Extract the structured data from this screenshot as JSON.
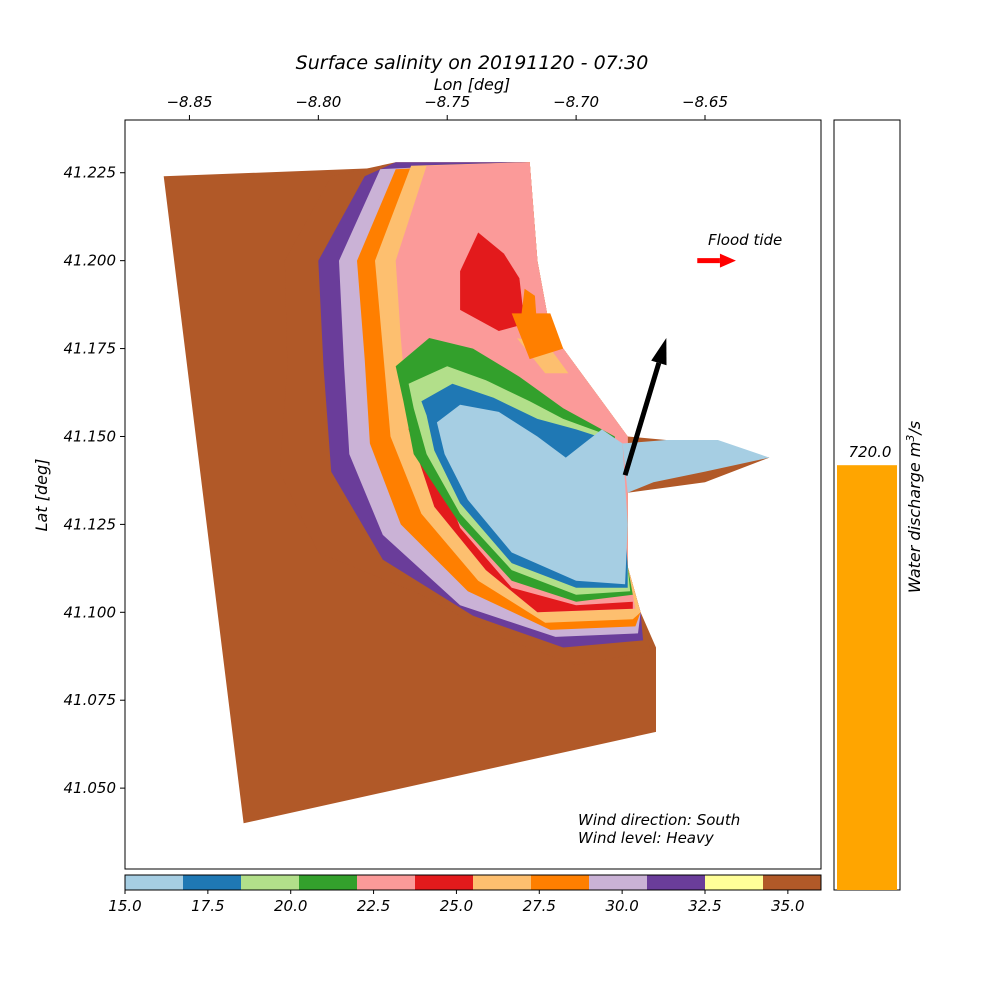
{
  "chart_data": {
    "type": "heatmap",
    "title": "Surface salinity on 20191120 - 07:30",
    "xlabel": "Lon [deg]",
    "ylabel": "Lat [deg]",
    "xlim": [
      -8.875,
      -8.605
    ],
    "ylim": [
      41.027,
      41.24
    ],
    "x_ticks": [
      {
        "value": -8.85,
        "label": "−8.85"
      },
      {
        "value": -8.8,
        "label": "−8.80"
      },
      {
        "value": -8.75,
        "label": "−8.75"
      },
      {
        "value": -8.7,
        "label": "−8.70"
      },
      {
        "value": -8.65,
        "label": "−8.65"
      }
    ],
    "y_ticks": [
      {
        "value": 41.05,
        "label": "41.050"
      },
      {
        "value": 41.075,
        "label": "41.075"
      },
      {
        "value": 41.1,
        "label": "41.100"
      },
      {
        "value": 41.125,
        "label": "41.125"
      },
      {
        "value": 41.15,
        "label": "41.150"
      },
      {
        "value": 41.175,
        "label": "41.175"
      },
      {
        "value": 41.2,
        "label": "41.200"
      },
      {
        "value": 41.225,
        "label": "41.225"
      }
    ],
    "colorbar": {
      "min": 15.0,
      "max": 36.0,
      "colors": [
        "#a6cee3",
        "#1f78b4",
        "#b2df8a",
        "#33a02c",
        "#fb9a99",
        "#e31a1c",
        "#fdbf6f",
        "#ff7f00",
        "#cab2d6",
        "#6a3d9a",
        "#ffff99",
        "#b15928"
      ],
      "tick_values": [
        15.0,
        17.5,
        20.0,
        22.5,
        25.0,
        27.5,
        30.0,
        32.5,
        35.0
      ],
      "tick_labels": [
        "15.0",
        "17.5",
        "20.0",
        "22.5",
        "25.0",
        "27.5",
        "30.0",
        "32.5",
        "35.0"
      ]
    },
    "domain_outline": [
      [
        -8.86,
        41.224
      ],
      [
        -8.718,
        41.228
      ],
      [
        -8.715,
        41.2
      ],
      [
        -8.71,
        41.18
      ],
      [
        -8.68,
        41.15
      ],
      [
        -8.665,
        41.149
      ],
      [
        -8.65,
        41.148
      ],
      [
        -8.625,
        41.144
      ],
      [
        -8.65,
        41.137
      ],
      [
        -8.68,
        41.134
      ],
      [
        -8.68,
        41.113
      ],
      [
        -8.675,
        41.1
      ],
      [
        -8.669,
        41.09
      ],
      [
        -8.669,
        41.066
      ],
      [
        -8.829,
        41.04
      ]
    ],
    "plume_bands": [
      {
        "salinity": 34.5,
        "points": [
          [
            -8.795,
            41.224
          ],
          [
            -8.77,
            41.228
          ],
          [
            -8.718,
            41.228
          ],
          [
            -8.715,
            41.2
          ],
          [
            -8.71,
            41.18
          ],
          [
            -8.69,
            41.16
          ],
          [
            -8.68,
            41.15
          ],
          [
            -8.68,
            41.134
          ],
          [
            -8.68,
            41.113
          ],
          [
            -8.675,
            41.1
          ],
          [
            -8.671,
            41.089
          ],
          [
            -8.7,
            41.085
          ],
          [
            -8.73,
            41.093
          ],
          [
            -8.76,
            41.105
          ],
          [
            -8.8,
            41.117
          ],
          [
            -8.815,
            41.14
          ],
          [
            -8.812,
            41.17
          ],
          [
            -8.813,
            41.2
          ]
        ]
      },
      {
        "salinity": 32.0,
        "points": [
          [
            -8.782,
            41.224
          ],
          [
            -8.77,
            41.228
          ],
          [
            -8.718,
            41.228
          ],
          [
            -8.715,
            41.2
          ],
          [
            -8.71,
            41.18
          ],
          [
            -8.69,
            41.16
          ],
          [
            -8.68,
            41.15
          ],
          [
            -8.68,
            41.134
          ],
          [
            -8.68,
            41.113
          ],
          [
            -8.675,
            41.1
          ],
          [
            -8.674,
            41.092
          ],
          [
            -8.705,
            41.09
          ],
          [
            -8.74,
            41.099
          ],
          [
            -8.775,
            41.115
          ],
          [
            -8.795,
            41.14
          ],
          [
            -8.798,
            41.17
          ],
          [
            -8.8,
            41.2
          ]
        ]
      },
      {
        "salinity": 30.5,
        "points": [
          [
            -8.776,
            41.226
          ],
          [
            -8.718,
            41.228
          ],
          [
            -8.715,
            41.2
          ],
          [
            -8.71,
            41.18
          ],
          [
            -8.69,
            41.16
          ],
          [
            -8.68,
            41.15
          ],
          [
            -8.68,
            41.113
          ],
          [
            -8.675,
            41.1
          ],
          [
            -8.676,
            41.094
          ],
          [
            -8.708,
            41.093
          ],
          [
            -8.745,
            41.102
          ],
          [
            -8.775,
            41.122
          ],
          [
            -8.788,
            41.145
          ],
          [
            -8.79,
            41.17
          ],
          [
            -8.792,
            41.2
          ]
        ]
      },
      {
        "salinity": 28.5,
        "points": [
          [
            -8.77,
            41.226
          ],
          [
            -8.718,
            41.228
          ],
          [
            -8.715,
            41.2
          ],
          [
            -8.71,
            41.18
          ],
          [
            -8.69,
            41.16
          ],
          [
            -8.68,
            41.15
          ],
          [
            -8.68,
            41.113
          ],
          [
            -8.675,
            41.1
          ],
          [
            -8.677,
            41.096
          ],
          [
            -8.71,
            41.095
          ],
          [
            -8.742,
            41.106
          ],
          [
            -8.768,
            41.125
          ],
          [
            -8.78,
            41.148
          ],
          [
            -8.782,
            41.172
          ],
          [
            -8.785,
            41.2
          ]
        ]
      },
      {
        "salinity": 26.5,
        "points": [
          [
            -8.764,
            41.227
          ],
          [
            -8.718,
            41.228
          ],
          [
            -8.715,
            41.2
          ],
          [
            -8.71,
            41.18
          ],
          [
            -8.69,
            41.16
          ],
          [
            -8.68,
            41.15
          ],
          [
            -8.68,
            41.113
          ],
          [
            -8.675,
            41.1
          ],
          [
            -8.678,
            41.098
          ],
          [
            -8.712,
            41.097
          ],
          [
            -8.738,
            41.109
          ],
          [
            -8.76,
            41.128
          ],
          [
            -8.772,
            41.15
          ],
          [
            -8.775,
            41.175
          ],
          [
            -8.778,
            41.2
          ]
        ]
      },
      {
        "salinity": 23.0,
        "points": [
          [
            -8.758,
            41.227
          ],
          [
            -8.718,
            41.228
          ],
          [
            -8.715,
            41.2
          ],
          [
            -8.71,
            41.18
          ],
          [
            -8.69,
            41.16
          ],
          [
            -8.68,
            41.15
          ],
          [
            -8.68,
            41.113
          ],
          [
            -8.677,
            41.101
          ],
          [
            -8.715,
            41.1
          ],
          [
            -8.735,
            41.112
          ],
          [
            -8.755,
            41.13
          ],
          [
            -8.765,
            41.152
          ],
          [
            -8.768,
            41.178
          ],
          [
            -8.77,
            41.2
          ]
        ]
      },
      {
        "salinity": 25.0,
        "points": [
          [
            -8.745,
            41.197
          ],
          [
            -8.738,
            41.208
          ],
          [
            -8.728,
            41.202
          ],
          [
            -8.722,
            41.195
          ],
          [
            -8.72,
            41.182
          ],
          [
            -8.73,
            41.18
          ],
          [
            -8.745,
            41.186
          ]
        ]
      },
      {
        "salinity": 25.0,
        "points": [
          [
            -8.745,
            41.124
          ],
          [
            -8.725,
            41.107
          ],
          [
            -8.7,
            41.102
          ],
          [
            -8.678,
            41.103
          ],
          [
            -8.678,
            41.101
          ],
          [
            -8.715,
            41.1
          ],
          [
            -8.735,
            41.112
          ],
          [
            -8.755,
            41.13
          ],
          [
            -8.765,
            41.152
          ],
          [
            -8.763,
            41.16
          ]
        ]
      },
      {
        "salinity": 28.0,
        "points": [
          [
            -8.722,
            41.18
          ],
          [
            -8.72,
            41.192
          ],
          [
            -8.716,
            41.19
          ],
          [
            -8.715,
            41.18
          ]
        ]
      },
      {
        "salinity": 27.0,
        "points": [
          [
            -8.723,
            41.178
          ],
          [
            -8.711,
            41.176
          ],
          [
            -8.703,
            41.168
          ],
          [
            -8.712,
            41.168
          ]
        ]
      },
      {
        "salinity": 28.0,
        "points": [
          [
            -8.725,
            41.185
          ],
          [
            -8.71,
            41.185
          ],
          [
            -8.705,
            41.175
          ],
          [
            -8.718,
            41.172
          ]
        ]
      },
      {
        "salinity": 21.0,
        "points": [
          [
            -8.77,
            41.17
          ],
          [
            -8.757,
            41.178
          ],
          [
            -8.74,
            41.175
          ],
          [
            -8.722,
            41.167
          ],
          [
            -8.705,
            41.158
          ],
          [
            -8.685,
            41.15
          ],
          [
            -8.68,
            41.113
          ],
          [
            -8.678,
            41.105
          ],
          [
            -8.7,
            41.103
          ],
          [
            -8.725,
            41.109
          ],
          [
            -8.745,
            41.125
          ],
          [
            -8.763,
            41.145
          ],
          [
            -8.767,
            41.16
          ]
        ]
      },
      {
        "salinity": 19.5,
        "points": [
          [
            -8.765,
            41.165
          ],
          [
            -8.75,
            41.17
          ],
          [
            -8.735,
            41.166
          ],
          [
            -8.718,
            41.16
          ],
          [
            -8.705,
            41.155
          ],
          [
            -8.69,
            41.151
          ],
          [
            -8.68,
            41.113
          ],
          [
            -8.679,
            41.106
          ],
          [
            -8.7,
            41.105
          ],
          [
            -8.725,
            41.112
          ],
          [
            -8.745,
            41.128
          ],
          [
            -8.758,
            41.145
          ],
          [
            -8.763,
            41.158
          ]
        ]
      },
      {
        "salinity": 17.5,
        "points": [
          [
            -8.76,
            41.16
          ],
          [
            -8.748,
            41.165
          ],
          [
            -8.732,
            41.161
          ],
          [
            -8.715,
            41.155
          ],
          [
            -8.7,
            41.152
          ],
          [
            -8.683,
            41.148
          ],
          [
            -8.68,
            41.113
          ],
          [
            -8.68,
            41.107
          ],
          [
            -8.7,
            41.107
          ],
          [
            -8.725,
            41.114
          ],
          [
            -8.745,
            41.131
          ],
          [
            -8.755,
            41.146
          ],
          [
            -8.758,
            41.156
          ]
        ]
      },
      {
        "salinity": 15.5,
        "points": [
          [
            -8.754,
            41.154
          ],
          [
            -8.745,
            41.159
          ],
          [
            -8.73,
            41.157
          ],
          [
            -8.715,
            41.15
          ],
          [
            -8.704,
            41.144
          ],
          [
            -8.697,
            41.148
          ],
          [
            -8.69,
            41.152
          ],
          [
            -8.682,
            41.148
          ],
          [
            -8.68,
            41.125
          ],
          [
            -8.681,
            41.108
          ],
          [
            -8.7,
            41.109
          ],
          [
            -8.725,
            41.117
          ],
          [
            -8.742,
            41.132
          ],
          [
            -8.751,
            41.145
          ]
        ]
      },
      {
        "salinity": 15.5,
        "points": [
          [
            -8.682,
            41.148
          ],
          [
            -8.665,
            41.149
          ],
          [
            -8.645,
            41.149
          ],
          [
            -8.625,
            41.144
          ],
          [
            -8.65,
            41.14
          ],
          [
            -8.67,
            41.137
          ],
          [
            -8.68,
            41.134
          ]
        ]
      }
    ],
    "wind_arrow": {
      "from": [
        -8.681,
        41.139
      ],
      "to": [
        -8.665,
        41.178
      ]
    },
    "tide_arrow": {
      "from": [
        -8.653,
        41.2
      ],
      "to": [
        -8.638,
        41.2
      ]
    },
    "annotations": {
      "flood_tide": "Flood tide",
      "wind_direction": "Wind direction: South",
      "wind_level": "Wind level: Heavy"
    },
    "discharge": {
      "value": 720.0,
      "value_label": "720.0",
      "ymax": 1300,
      "bar_color": "#ffa500",
      "ylabel_main": "Water discharge m",
      "ylabel_sup": "3",
      "ylabel_tail": "/s"
    }
  }
}
